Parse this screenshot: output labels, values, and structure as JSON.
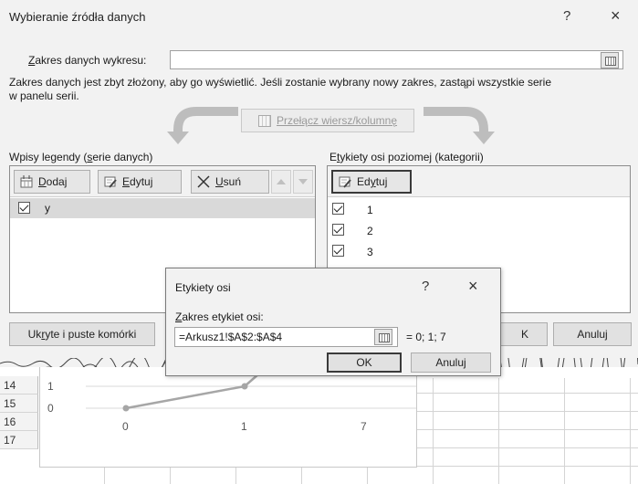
{
  "dialog": {
    "title": "Wybieranie źródła danych",
    "help_glyph": "?",
    "close_glyph": "×",
    "range_label_accel": "Z",
    "range_label_rest": "akres danych wykresu:",
    "range_value": "",
    "warning_line1": "Zakres danych jest zbyt złożony, aby go wyświetlić. Jeśli zostanie wybrany nowy zakres, zastąpi wszystkie serie",
    "warning_line2": "w panelu serii.",
    "switch_button": "Przełącz wiersz/kolumnę",
    "legend_header_pre": "Wpisy legendy (",
    "legend_header_accel": "s",
    "legend_header_post": "erie danych)",
    "legend_toolbar": {
      "add_accel": "D",
      "add_rest": "odaj",
      "edit_accel": "E",
      "edit_rest": "dytuj",
      "remove_accel": "U",
      "remove_rest": "suń"
    },
    "series": [
      {
        "name": "y",
        "checked": true
      }
    ],
    "axis_header_pre": "E",
    "axis_header_accel": "t",
    "axis_header_post": "ykiety osi poziomej (kategorii)",
    "axis_edit_pre": "Ed",
    "axis_edit_accel": "y",
    "axis_edit_post": "tuj",
    "categories": [
      {
        "label": "1",
        "checked": true
      },
      {
        "label": "2",
        "checked": true
      },
      {
        "label": "3",
        "checked": true
      }
    ],
    "hidden_cells_pre": "Uk",
    "hidden_cells_accel": "r",
    "hidden_cells_post": "yte i puste komórki",
    "ok_partial": "K",
    "cancel": "Anuluj"
  },
  "subdialog": {
    "title": "Etykiety osi",
    "help_glyph": "?",
    "close_glyph": "×",
    "label_accel": "Z",
    "label_rest": "akres etykiet osi:",
    "value": "=Arkusz1!$A$2:$A$4",
    "preview": "= 0; 1; 7",
    "ok": "OK",
    "cancel": "Anuluj"
  },
  "sheet": {
    "rows": [
      "14",
      "15",
      "16",
      "17"
    ],
    "chart_y_labels": [
      "1",
      "0"
    ],
    "chart_x_labels": [
      "0",
      "1",
      "7"
    ]
  },
  "colors": {
    "dialog_bg": "#f2f2f2",
    "selected_row": "#d9d9d9",
    "chart_line": "#a6a6a6",
    "gridline": "#d9d9d9"
  }
}
